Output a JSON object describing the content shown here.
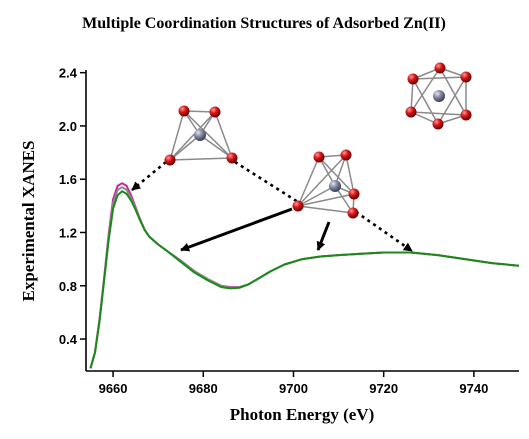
{
  "chart_data": {
    "type": "line",
    "title": "Multiple Coordination Structures of Adsorbed Zn(II)",
    "xlabel": "Photon Energy (eV)",
    "ylabel": "Experimental XANES",
    "xlim": [
      9654,
      9750
    ],
    "ylim": [
      0.16,
      2.42
    ],
    "xticks": [
      9660,
      9680,
      9700,
      9720,
      9740
    ],
    "yticks": [
      0.4,
      0.8,
      1.2,
      1.6,
      2.0,
      2.4
    ],
    "xtick_labels": [
      "9660",
      "9680",
      "9700",
      "9720",
      "9740"
    ],
    "ytick_labels": [
      "0.4",
      "0.8",
      "1.2",
      "1.6",
      "2.0",
      "2.4"
    ],
    "grid": false,
    "legend": "none",
    "series": [
      {
        "color": "#cc2299",
        "x": [
          9655,
          9656,
          9657,
          9658,
          9659,
          9660,
          9661,
          9662,
          9663,
          9664,
          9665,
          9666,
          9667,
          9668,
          9670,
          9672,
          9675,
          9678,
          9681,
          9684,
          9686,
          9688,
          9690,
          9692,
          9695,
          9698,
          9702,
          9706,
          9710,
          9715,
          9720,
          9726,
          9732,
          9738,
          9744,
          9750
        ],
        "y": [
          0.18,
          0.3,
          0.55,
          0.85,
          1.18,
          1.45,
          1.55,
          1.57,
          1.55,
          1.48,
          1.39,
          1.3,
          1.22,
          1.17,
          1.11,
          1.06,
          0.99,
          0.91,
          0.85,
          0.8,
          0.79,
          0.79,
          0.81,
          0.85,
          0.91,
          0.96,
          1.0,
          1.02,
          1.03,
          1.04,
          1.05,
          1.05,
          1.03,
          1.0,
          0.97,
          0.95
        ]
      },
      {
        "color": "#8a8a8a",
        "x": [
          9655,
          9656,
          9657,
          9658,
          9659,
          9660,
          9661,
          9662,
          9663,
          9664,
          9665,
          9666,
          9667,
          9668,
          9670,
          9672,
          9675,
          9678,
          9681,
          9684,
          9686,
          9688,
          9690,
          9692,
          9695,
          9698,
          9702,
          9706,
          9710,
          9715,
          9720,
          9726,
          9732,
          9738,
          9744,
          9750
        ],
        "y": [
          0.18,
          0.3,
          0.54,
          0.84,
          1.16,
          1.42,
          1.52,
          1.54,
          1.52,
          1.46,
          1.38,
          1.3,
          1.22,
          1.17,
          1.11,
          1.06,
          0.99,
          0.91,
          0.85,
          0.8,
          0.785,
          0.79,
          0.81,
          0.85,
          0.91,
          0.96,
          1.0,
          1.02,
          1.03,
          1.04,
          1.05,
          1.05,
          1.03,
          1.0,
          0.97,
          0.95
        ]
      },
      {
        "color": "#1a8a1a",
        "x": [
          9655,
          9656,
          9657,
          9658,
          9659,
          9660,
          9661,
          9662,
          9663,
          9664,
          9665,
          9666,
          9667,
          9668,
          9670,
          9672,
          9675,
          9678,
          9681,
          9684,
          9686,
          9688,
          9690,
          9692,
          9695,
          9698,
          9702,
          9706,
          9710,
          9715,
          9720,
          9726,
          9732,
          9738,
          9744,
          9750
        ],
        "y": [
          0.18,
          0.3,
          0.53,
          0.83,
          1.14,
          1.38,
          1.48,
          1.51,
          1.49,
          1.44,
          1.37,
          1.29,
          1.22,
          1.17,
          1.11,
          1.06,
          0.98,
          0.9,
          0.84,
          0.79,
          0.78,
          0.785,
          0.81,
          0.85,
          0.91,
          0.96,
          1.0,
          1.02,
          1.03,
          1.04,
          1.05,
          1.05,
          1.03,
          1.0,
          0.97,
          0.95
        ]
      }
    ],
    "annotations": [
      {
        "kind": "molecule",
        "name": "octahedral-structure",
        "color": "#cc0000",
        "metal_color": "#7a7f9a"
      },
      {
        "kind": "molecule",
        "name": "tetrahedral-structure",
        "color": "#cc0000",
        "metal_color": "#7a7f9a"
      },
      {
        "kind": "molecule",
        "name": "trigonal-bipyramidal-structure",
        "color": "#cc0000",
        "metal_color": "#7a7f9a"
      },
      {
        "kind": "dotted-arrow",
        "from": "tetrahedral-structure",
        "to_x": 9663,
        "to_y": 1.5
      },
      {
        "kind": "dotted-arrow",
        "from": "trigonal-bipyramidal-structure",
        "to_x": 9727,
        "to_y": 1.05
      },
      {
        "kind": "solid-arrow",
        "from": "trigonal-bipyramidal-structure",
        "to_x": 9675,
        "to_y": 1.06
      },
      {
        "kind": "solid-arrow",
        "from": "trigonal-bipyramidal-structure",
        "to_x": 9706,
        "to_y": 1.01
      }
    ]
  }
}
